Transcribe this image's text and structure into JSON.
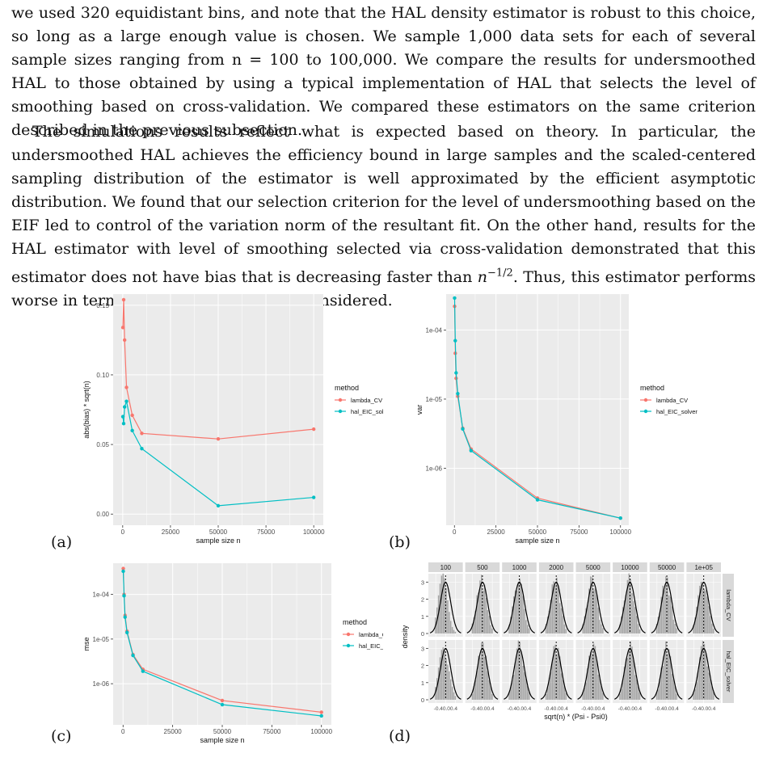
{
  "text": {
    "paragraph1": "we used 320 equidistant bins, and note that the HAL density estimator is robust to this choice, so long as a large enough value is chosen. We sample 1,000 data sets for each of several sample sizes ranging from n = 100 to 100,000. We compare the results for undersmoothed HAL to those obtained by using a typical implementation of HAL that selects the level of smoothing based on cross-validation. We compared these estimators on the same criterion described in the previous subsection.",
    "paragraph2": "The simulations results reflect what is expected based on theory. In particular, the undersmoothed HAL achieves the efficiency bound in large samples and the scaled-centered sampling distribution of the estimator is well approximated by the efficient asymptotic distribution. We found that our selection criterion for the level of undersmoothing based on the EIF led to control of the variation norm of the resultant fit. On the other hand, results for the HAL estimator with level of smoothing selected via cross-validation demonstrated that this estimator does not have bias that is decreasing faster than n^{-1/2}. Thus, this estimator performs worse in terms of all criteria that we considered."
  },
  "panel_labels": [
    "(a)",
    "(b)",
    "(c)",
    "(d)"
  ],
  "colors": {
    "lambda_CV": "#f8766d",
    "hal_EIC_solver": "#00bfc4",
    "panel_bg": "#ebebeb",
    "strip_bg": "#d9d9d9"
  },
  "chart_data": [
    {
      "type": "line",
      "panel": "(a)",
      "xlabel": "sample size n",
      "ylabel": "abs(bias) * sqrt(n)",
      "xlim": [
        0,
        100000
      ],
      "ylim": [
        0,
        0.158
      ],
      "xticks": [
        0,
        25000,
        50000,
        75000,
        100000
      ],
      "xtick_labels": [
        "0",
        "25000",
        "50000",
        "75000",
        "100000"
      ],
      "yticks": [
        0,
        0.05,
        0.1,
        0.15
      ],
      "ytick_labels": [
        "0.00",
        "0.05",
        "0.10",
        "0.15"
      ],
      "legend": {
        "title": "method",
        "position": "right"
      },
      "x": [
        100,
        500,
        1000,
        2000,
        5000,
        10000,
        50000,
        100000
      ],
      "series": [
        {
          "name": "lambda_CV",
          "values": [
            0.134,
            0.154,
            0.125,
            0.091,
            0.071,
            0.058,
            0.054,
            0.061
          ]
        },
        {
          "name": "hal_EIC_solver",
          "values": [
            0.07,
            0.065,
            0.077,
            0.081,
            0.06,
            0.047,
            0.006,
            0.012
          ]
        }
      ]
    },
    {
      "type": "line",
      "panel": "(b)",
      "xlabel": "sample size n",
      "ylabel": "var",
      "log_y": true,
      "xlim": [
        0,
        100000
      ],
      "ylim": [
        1.5e-07,
        0.00033
      ],
      "xticks": [
        0,
        25000,
        50000,
        75000,
        100000
      ],
      "xtick_labels": [
        "0",
        "25000",
        "50000",
        "75000",
        "100000"
      ],
      "yticks": [
        1e-06,
        1e-05,
        0.0001
      ],
      "ytick_labels": [
        "1e-06",
        "1e-05",
        "1e-04"
      ],
      "legend": {
        "title": "method",
        "position": "right"
      },
      "x": [
        100,
        500,
        1000,
        2000,
        5000,
        10000,
        50000,
        100000
      ],
      "series": [
        {
          "name": "lambda_CV",
          "values": [
            0.00022,
            4.6e-05,
            2e-05,
            1.1e-05,
            3.8e-06,
            1.9e-06,
            3.7e-07,
            1.9e-07
          ]
        },
        {
          "name": "hal_EIC_solver",
          "values": [
            0.00029,
            7e-05,
            2.4e-05,
            1.2e-05,
            3.7e-06,
            1.8e-06,
            3.5e-07,
            1.9e-07
          ]
        }
      ]
    },
    {
      "type": "line",
      "panel": "(c)",
      "xlabel": "sample size n",
      "ylabel": "mse",
      "log_y": true,
      "xlim": [
        0,
        100000
      ],
      "ylim": [
        1.2e-07,
        0.0005
      ],
      "xticks": [
        0,
        25000,
        50000,
        75000,
        100000
      ],
      "xtick_labels": [
        "0",
        "25000",
        "50000",
        "75000",
        "100000"
      ],
      "yticks": [
        1e-06,
        1e-05,
        0.0001
      ],
      "ytick_labels": [
        "1e-06",
        "1e-05",
        "1e-04"
      ],
      "legend": {
        "title": "method",
        "position": "right"
      },
      "x": [
        100,
        500,
        1000,
        2000,
        5000,
        10000,
        50000,
        100000
      ],
      "series": [
        {
          "name": "lambda_CV",
          "values": [
            0.00038,
            0.0001,
            3.4e-05,
            1.5e-05,
            4.5e-06,
            2.1e-06,
            4.2e-07,
            2.3e-07
          ]
        },
        {
          "name": "hal_EIC_solver",
          "values": [
            0.00033,
            9.3e-05,
            3.1e-05,
            1.4e-05,
            4.3e-06,
            1.9e-06,
            3.4e-07,
            1.9e-07
          ]
        }
      ]
    },
    {
      "type": "histogram_facets",
      "panel": "(d)",
      "xlabel": "sqrt(n) * (Psi - Psi0)",
      "ylabel": "density",
      "columns": [
        "100",
        "500",
        "1000",
        "2000",
        "5000",
        "10000",
        "50000",
        "1e+05"
      ],
      "rows": [
        "lambda_CV",
        "hal_EIC_solver"
      ],
      "yticks": [
        0,
        1,
        2,
        3
      ],
      "ytick_labels": [
        "0",
        "1",
        "2",
        "3"
      ],
      "xtick_label": "-0.40.00.4",
      "curve_peak": 3.0
    }
  ]
}
